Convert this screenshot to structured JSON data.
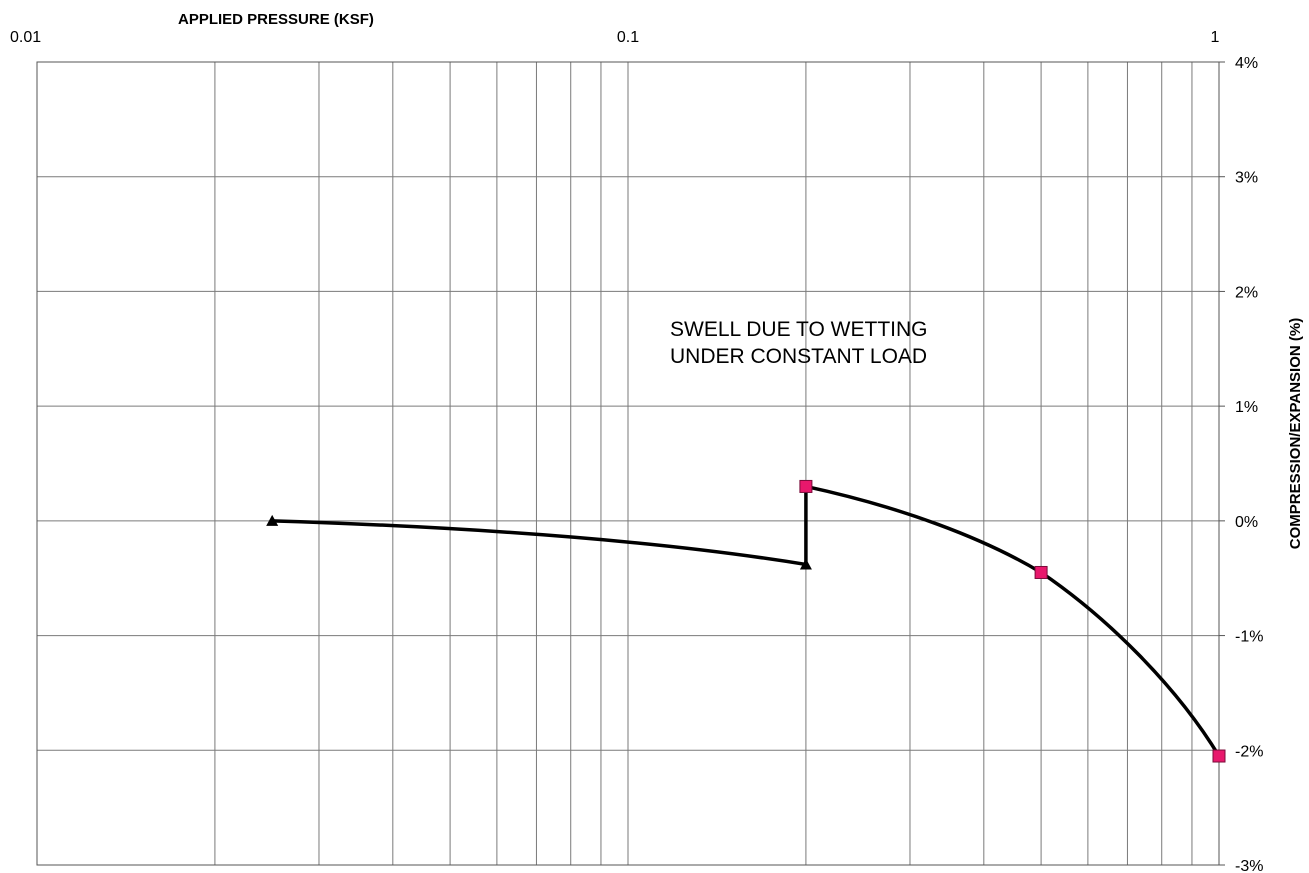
{
  "chart_data": {
    "type": "line",
    "title": "",
    "xlabel": "APPLIED PRESSURE (KSF)",
    "ylabel": "COMPRESSION/EXPANSION (%)",
    "x_scale": "log",
    "xlim": [
      0.01,
      1
    ],
    "ylim": [
      -3,
      4
    ],
    "x_tick_labels": [
      {
        "value": 0.01,
        "label": "0.01"
      },
      {
        "value": 0.1,
        "label": "0.1"
      },
      {
        "value": 1,
        "label": "1"
      }
    ],
    "y_tick_labels": [
      {
        "value": 4,
        "label": "4%"
      },
      {
        "value": 3,
        "label": "3%"
      },
      {
        "value": 2,
        "label": "2%"
      },
      {
        "value": 1,
        "label": "1%"
      },
      {
        "value": 0,
        "label": "0%"
      },
      {
        "value": -1,
        "label": "-1%"
      },
      {
        "value": -2,
        "label": "-2%"
      },
      {
        "value": -3,
        "label": "-3%"
      }
    ],
    "y_axis_side": "right",
    "grid": true,
    "series": [
      {
        "marker": "triangle",
        "color": "#000000",
        "points": [
          {
            "x": 0.025,
            "y": 0.0
          },
          {
            "x": 0.2,
            "y": -0.38
          }
        ]
      },
      {
        "marker": "square",
        "color": "#e8186c",
        "points": [
          {
            "x": 0.2,
            "y": 0.3
          },
          {
            "x": 0.5,
            "y": -0.45
          },
          {
            "x": 1.0,
            "y": -2.05
          }
        ]
      }
    ],
    "annotations": [
      {
        "text_lines": [
          "SWELL DUE TO WETTING",
          "UNDER CONSTANT LOAD"
        ],
        "x": 0.25,
        "y": 1.5
      }
    ]
  }
}
